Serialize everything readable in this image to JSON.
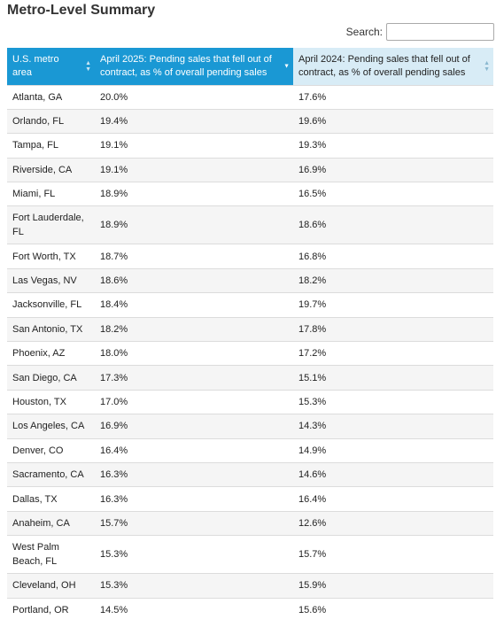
{
  "title": "Metro-Level Summary",
  "search": {
    "label": "Search:",
    "value": "",
    "placeholder": ""
  },
  "table": {
    "headers": {
      "metro": "U.S. metro area",
      "apr2025": "April 2025: Pending sales that fell out of contract, as % of overall pending sales",
      "apr2024": "April 2024: Pending sales that fell out of contract, as % of overall pending sales"
    },
    "sort": {
      "column": "apr2025",
      "direction": "descending"
    },
    "rows": [
      {
        "metro": "Atlanta, GA",
        "apr2025": "20.0%",
        "apr2024": "17.6%"
      },
      {
        "metro": "Orlando, FL",
        "apr2025": "19.4%",
        "apr2024": "19.6%"
      },
      {
        "metro": "Tampa, FL",
        "apr2025": "19.1%",
        "apr2024": "19.3%"
      },
      {
        "metro": "Riverside, CA",
        "apr2025": "19.1%",
        "apr2024": "16.9%"
      },
      {
        "metro": "Miami, FL",
        "apr2025": "18.9%",
        "apr2024": "16.5%"
      },
      {
        "metro": "Fort Lauderdale, FL",
        "apr2025": "18.9%",
        "apr2024": "18.6%"
      },
      {
        "metro": "Fort Worth, TX",
        "apr2025": "18.7%",
        "apr2024": "16.8%"
      },
      {
        "metro": "Las Vegas, NV",
        "apr2025": "18.6%",
        "apr2024": "18.2%"
      },
      {
        "metro": "Jacksonville, FL",
        "apr2025": "18.4%",
        "apr2024": "19.7%"
      },
      {
        "metro": "San Antonio, TX",
        "apr2025": "18.2%",
        "apr2024": "17.8%"
      },
      {
        "metro": "Phoenix, AZ",
        "apr2025": "18.0%",
        "apr2024": "17.2%"
      },
      {
        "metro": "San Diego, CA",
        "apr2025": "17.3%",
        "apr2024": "15.1%"
      },
      {
        "metro": "Houston, TX",
        "apr2025": "17.0%",
        "apr2024": "15.3%"
      },
      {
        "metro": "Los Angeles, CA",
        "apr2025": "16.9%",
        "apr2024": "14.3%"
      },
      {
        "metro": "Denver, CO",
        "apr2025": "16.4%",
        "apr2024": "14.9%"
      },
      {
        "metro": "Sacramento, CA",
        "apr2025": "16.3%",
        "apr2024": "14.6%"
      },
      {
        "metro": "Dallas, TX",
        "apr2025": "16.3%",
        "apr2024": "16.4%"
      },
      {
        "metro": "Anaheim, CA",
        "apr2025": "15.7%",
        "apr2024": "12.6%"
      },
      {
        "metro": "West Palm Beach, FL",
        "apr2025": "15.3%",
        "apr2024": "15.7%"
      },
      {
        "metro": "Cleveland, OH",
        "apr2025": "15.3%",
        "apr2024": "15.9%"
      },
      {
        "metro": "Portland, OR",
        "apr2025": "14.5%",
        "apr2024": "15.6%"
      }
    ]
  },
  "icons": {
    "sort_both": "sort-both-icon",
    "sort_desc": "sort-descending-icon"
  },
  "colors": {
    "header_active": "#1a98d4",
    "header_inactive": "#d8ecf6",
    "row_stripe": "#f5f5f5"
  }
}
